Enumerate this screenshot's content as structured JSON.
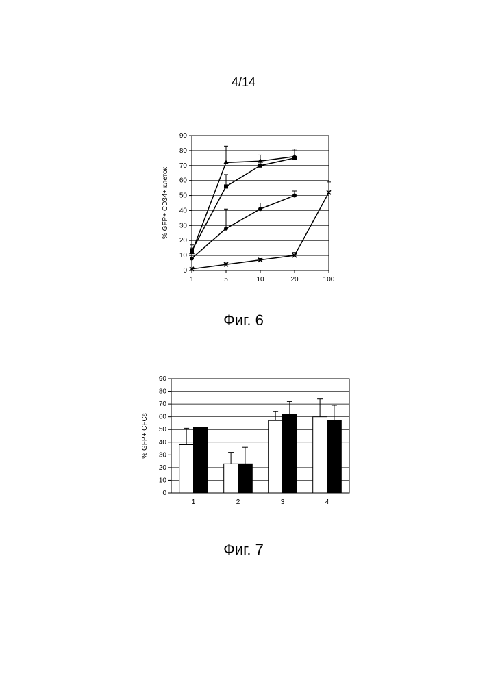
{
  "page_number": "4/14",
  "line_chart": {
    "type": "line",
    "ylabel": "% GFP+ CD34+ клеток",
    "ylabel_fontsize": 10,
    "yticks": [
      0,
      10,
      20,
      30,
      40,
      50,
      60,
      70,
      80,
      90
    ],
    "ylim": [
      0,
      90
    ],
    "xticks_positions": [
      1,
      5,
      10,
      20,
      100
    ],
    "xticks_labels": [
      "1",
      "5",
      "10",
      "20",
      "100"
    ],
    "xlim": [
      1,
      100
    ],
    "background_color": "#ffffff",
    "grid_color": "#000000",
    "axis_color": "#000000",
    "series": [
      {
        "marker": "triangle",
        "color": "#000000",
        "marker_size": 6,
        "line_width": 1.5,
        "points": [
          {
            "x": 1,
            "y": 12,
            "err": 3
          },
          {
            "x": 5,
            "y": 72,
            "err": 11
          },
          {
            "x": 10,
            "y": 73,
            "err": 4
          },
          {
            "x": 20,
            "y": 76,
            "err": 4
          }
        ]
      },
      {
        "marker": "square",
        "color": "#000000",
        "marker_size": 6,
        "line_width": 1.5,
        "points": [
          {
            "x": 1,
            "y": 13,
            "err": 4
          },
          {
            "x": 5,
            "y": 56,
            "err": 8
          },
          {
            "x": 10,
            "y": 70,
            "err": 3
          },
          {
            "x": 20,
            "y": 75,
            "err": 6
          }
        ]
      },
      {
        "marker": "circle",
        "color": "#000000",
        "marker_size": 6,
        "line_width": 1.5,
        "points": [
          {
            "x": 1,
            "y": 8,
            "err": 2
          },
          {
            "x": 5,
            "y": 28,
            "err": 13
          },
          {
            "x": 10,
            "y": 41,
            "err": 4
          },
          {
            "x": 20,
            "y": 50,
            "err": 3
          }
        ]
      },
      {
        "marker": "x",
        "color": "#000000",
        "marker_size": 6,
        "line_width": 1.5,
        "points": [
          {
            "x": 1,
            "y": 1,
            "err": 0
          },
          {
            "x": 5,
            "y": 4,
            "err": 1
          },
          {
            "x": 10,
            "y": 7,
            "err": 1
          },
          {
            "x": 20,
            "y": 10,
            "err": 2
          },
          {
            "x": 100,
            "y": 52,
            "err": 7
          }
        ]
      }
    ],
    "tick_fontsize": 10
  },
  "bar_chart": {
    "type": "bar-grouped",
    "ylabel": "% GFP+ CFCs",
    "ylabel_fontsize": 10,
    "yticks": [
      0,
      10,
      20,
      30,
      40,
      50,
      60,
      70,
      80,
      90
    ],
    "ylim": [
      0,
      90
    ],
    "xticks_labels": [
      "1",
      "2",
      "3",
      "4"
    ],
    "background_color": "#ffffff",
    "grid_color": "#000000",
    "axis_color": "#000000",
    "bar_width": 0.32,
    "series_colors": [
      "#ffffff",
      "#000000"
    ],
    "groups": [
      {
        "white": {
          "value": 38,
          "err": 13
        },
        "black": {
          "value": 52,
          "err": 0
        }
      },
      {
        "white": {
          "value": 23,
          "err": 9
        },
        "black": {
          "value": 23,
          "err": 13
        }
      },
      {
        "white": {
          "value": 57,
          "err": 7
        },
        "black": {
          "value": 62,
          "err": 10
        }
      },
      {
        "white": {
          "value": 60,
          "err": 14
        },
        "black": {
          "value": 57,
          "err": 12
        }
      }
    ],
    "tick_fontsize": 10
  },
  "captions": {
    "fig6": "Фиг. 6",
    "fig7": "Фиг. 7"
  }
}
